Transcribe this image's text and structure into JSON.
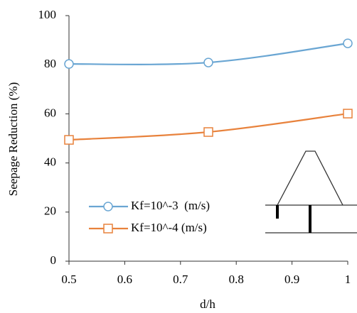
{
  "chart_data": {
    "type": "line",
    "xlabel": "d/h",
    "ylabel": "Seepage Reduction (%)",
    "x": [
      0.5,
      0.75,
      1
    ],
    "series": [
      {
        "name": "Kf=10^-3  (m/s)",
        "color": "#6aa6d3",
        "marker": "circle",
        "values": [
          80.3,
          80.9,
          88.7
        ]
      },
      {
        "name": "Kf=10^-4 (m/s)",
        "color": "#e8823c",
        "marker": "square",
        "values": [
          49.4,
          52.6,
          60.1
        ]
      }
    ],
    "xlim": [
      0.5,
      1
    ],
    "xticks": [
      0.5,
      0.6,
      0.7,
      0.8,
      0.9,
      1
    ],
    "ylim": [
      0,
      100
    ],
    "yticks": [
      0,
      20,
      40,
      60,
      80,
      100
    ],
    "grid": false,
    "legend": "lower left"
  }
}
